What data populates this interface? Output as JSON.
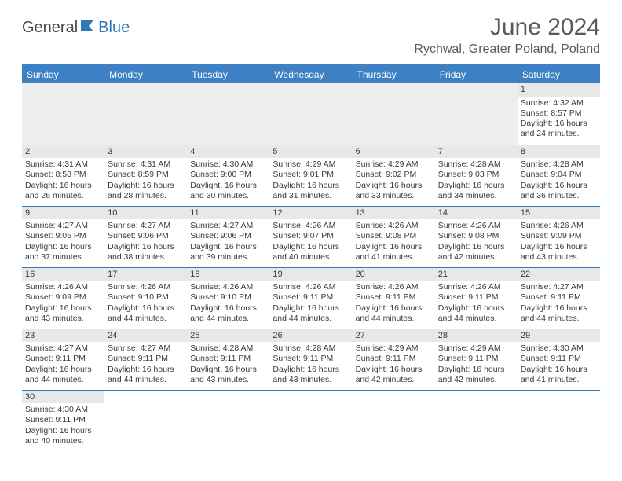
{
  "brand": {
    "general": "General",
    "blue": "Blue"
  },
  "title": "June 2024",
  "location": "Rychwal, Greater Poland, Poland",
  "colors": {
    "header_bg": "#3d80c4",
    "rule": "#2f79b9",
    "daynum_bg": "#e8e8e8",
    "pad_bg": "#eeeeee",
    "text": "#3a3a3a",
    "title_text": "#5a5a5a"
  },
  "typography": {
    "title_fontsize": 30,
    "location_fontsize": 16,
    "dayhead_fontsize": 12,
    "cell_fontsize": 10.5
  },
  "weekdays": [
    "Sunday",
    "Monday",
    "Tuesday",
    "Wednesday",
    "Thursday",
    "Friday",
    "Saturday"
  ],
  "weeks": [
    [
      null,
      null,
      null,
      null,
      null,
      null,
      {
        "n": "1",
        "sr": "Sunrise: 4:32 AM",
        "ss": "Sunset: 8:57 PM",
        "d1": "Daylight: 16 hours",
        "d2": "and 24 minutes."
      }
    ],
    [
      {
        "n": "2",
        "sr": "Sunrise: 4:31 AM",
        "ss": "Sunset: 8:58 PM",
        "d1": "Daylight: 16 hours",
        "d2": "and 26 minutes."
      },
      {
        "n": "3",
        "sr": "Sunrise: 4:31 AM",
        "ss": "Sunset: 8:59 PM",
        "d1": "Daylight: 16 hours",
        "d2": "and 28 minutes."
      },
      {
        "n": "4",
        "sr": "Sunrise: 4:30 AM",
        "ss": "Sunset: 9:00 PM",
        "d1": "Daylight: 16 hours",
        "d2": "and 30 minutes."
      },
      {
        "n": "5",
        "sr": "Sunrise: 4:29 AM",
        "ss": "Sunset: 9:01 PM",
        "d1": "Daylight: 16 hours",
        "d2": "and 31 minutes."
      },
      {
        "n": "6",
        "sr": "Sunrise: 4:29 AM",
        "ss": "Sunset: 9:02 PM",
        "d1": "Daylight: 16 hours",
        "d2": "and 33 minutes."
      },
      {
        "n": "7",
        "sr": "Sunrise: 4:28 AM",
        "ss": "Sunset: 9:03 PM",
        "d1": "Daylight: 16 hours",
        "d2": "and 34 minutes."
      },
      {
        "n": "8",
        "sr": "Sunrise: 4:28 AM",
        "ss": "Sunset: 9:04 PM",
        "d1": "Daylight: 16 hours",
        "d2": "and 36 minutes."
      }
    ],
    [
      {
        "n": "9",
        "sr": "Sunrise: 4:27 AM",
        "ss": "Sunset: 9:05 PM",
        "d1": "Daylight: 16 hours",
        "d2": "and 37 minutes."
      },
      {
        "n": "10",
        "sr": "Sunrise: 4:27 AM",
        "ss": "Sunset: 9:06 PM",
        "d1": "Daylight: 16 hours",
        "d2": "and 38 minutes."
      },
      {
        "n": "11",
        "sr": "Sunrise: 4:27 AM",
        "ss": "Sunset: 9:06 PM",
        "d1": "Daylight: 16 hours",
        "d2": "and 39 minutes."
      },
      {
        "n": "12",
        "sr": "Sunrise: 4:26 AM",
        "ss": "Sunset: 9:07 PM",
        "d1": "Daylight: 16 hours",
        "d2": "and 40 minutes."
      },
      {
        "n": "13",
        "sr": "Sunrise: 4:26 AM",
        "ss": "Sunset: 9:08 PM",
        "d1": "Daylight: 16 hours",
        "d2": "and 41 minutes."
      },
      {
        "n": "14",
        "sr": "Sunrise: 4:26 AM",
        "ss": "Sunset: 9:08 PM",
        "d1": "Daylight: 16 hours",
        "d2": "and 42 minutes."
      },
      {
        "n": "15",
        "sr": "Sunrise: 4:26 AM",
        "ss": "Sunset: 9:09 PM",
        "d1": "Daylight: 16 hours",
        "d2": "and 43 minutes."
      }
    ],
    [
      {
        "n": "16",
        "sr": "Sunrise: 4:26 AM",
        "ss": "Sunset: 9:09 PM",
        "d1": "Daylight: 16 hours",
        "d2": "and 43 minutes."
      },
      {
        "n": "17",
        "sr": "Sunrise: 4:26 AM",
        "ss": "Sunset: 9:10 PM",
        "d1": "Daylight: 16 hours",
        "d2": "and 44 minutes."
      },
      {
        "n": "18",
        "sr": "Sunrise: 4:26 AM",
        "ss": "Sunset: 9:10 PM",
        "d1": "Daylight: 16 hours",
        "d2": "and 44 minutes."
      },
      {
        "n": "19",
        "sr": "Sunrise: 4:26 AM",
        "ss": "Sunset: 9:11 PM",
        "d1": "Daylight: 16 hours",
        "d2": "and 44 minutes."
      },
      {
        "n": "20",
        "sr": "Sunrise: 4:26 AM",
        "ss": "Sunset: 9:11 PM",
        "d1": "Daylight: 16 hours",
        "d2": "and 44 minutes."
      },
      {
        "n": "21",
        "sr": "Sunrise: 4:26 AM",
        "ss": "Sunset: 9:11 PM",
        "d1": "Daylight: 16 hours",
        "d2": "and 44 minutes."
      },
      {
        "n": "22",
        "sr": "Sunrise: 4:27 AM",
        "ss": "Sunset: 9:11 PM",
        "d1": "Daylight: 16 hours",
        "d2": "and 44 minutes."
      }
    ],
    [
      {
        "n": "23",
        "sr": "Sunrise: 4:27 AM",
        "ss": "Sunset: 9:11 PM",
        "d1": "Daylight: 16 hours",
        "d2": "and 44 minutes."
      },
      {
        "n": "24",
        "sr": "Sunrise: 4:27 AM",
        "ss": "Sunset: 9:11 PM",
        "d1": "Daylight: 16 hours",
        "d2": "and 44 minutes."
      },
      {
        "n": "25",
        "sr": "Sunrise: 4:28 AM",
        "ss": "Sunset: 9:11 PM",
        "d1": "Daylight: 16 hours",
        "d2": "and 43 minutes."
      },
      {
        "n": "26",
        "sr": "Sunrise: 4:28 AM",
        "ss": "Sunset: 9:11 PM",
        "d1": "Daylight: 16 hours",
        "d2": "and 43 minutes."
      },
      {
        "n": "27",
        "sr": "Sunrise: 4:29 AM",
        "ss": "Sunset: 9:11 PM",
        "d1": "Daylight: 16 hours",
        "d2": "and 42 minutes."
      },
      {
        "n": "28",
        "sr": "Sunrise: 4:29 AM",
        "ss": "Sunset: 9:11 PM",
        "d1": "Daylight: 16 hours",
        "d2": "and 42 minutes."
      },
      {
        "n": "29",
        "sr": "Sunrise: 4:30 AM",
        "ss": "Sunset: 9:11 PM",
        "d1": "Daylight: 16 hours",
        "d2": "and 41 minutes."
      }
    ],
    [
      {
        "n": "30",
        "sr": "Sunrise: 4:30 AM",
        "ss": "Sunset: 9:11 PM",
        "d1": "Daylight: 16 hours",
        "d2": "and 40 minutes."
      },
      null,
      null,
      null,
      null,
      null,
      null
    ]
  ]
}
